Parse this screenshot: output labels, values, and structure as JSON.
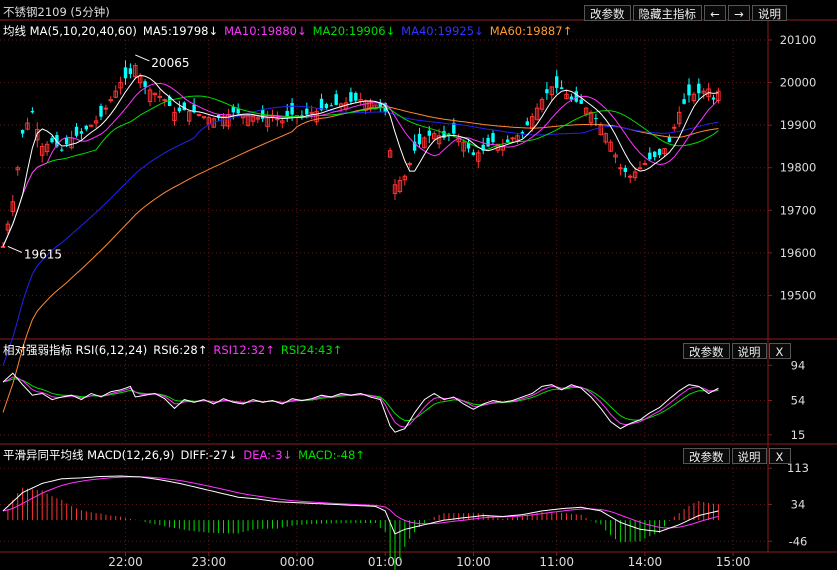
{
  "colors": {
    "up": "#ff3333",
    "down": "#00ffff",
    "bg": "#000000",
    "grid": "#5a1a1a",
    "axis": "#8b1c1c",
    "ma5": "#ffffff",
    "ma10": "#ff33ff",
    "ma20": "#00dd00",
    "ma40": "#2222ee",
    "ma60": "#ff8833",
    "rsi6": "#ffffff",
    "rsi12": "#ff33ff",
    "rsi24": "#00dd00",
    "diff": "#ffffff",
    "dea": "#ff33ff",
    "macd_pos": "#ff3333",
    "macd_neg": "#00dd00"
  },
  "header": {
    "title": "不锈钢2109 (5分钟)",
    "buttons": {
      "params": "改参数",
      "hide": "隐藏主指标",
      "prev": "←",
      "next": "→",
      "help": "说明",
      "close": "X"
    }
  },
  "ma_legend": {
    "name": "均线 MA(5,10,20,40,60)",
    "ma5": "MA5:19798↓",
    "ma10": "MA10:19880↓",
    "ma20": "MA20:19906↓",
    "ma40": "MA40:19925↓",
    "ma60": "MA60:19887↑"
  },
  "rsi_legend": {
    "name": "相对强弱指标 RSI(6,12,24)",
    "rsi6": "RSI6:28↑",
    "rsi12": "RSI12:32↑",
    "rsi24": "RSI24:43↑"
  },
  "macd_legend": {
    "name": "平滑异同平均线 MACD(12,26,9)",
    "diff": "DIFF:-27↓",
    "dea": "DEA:-3↓",
    "macd": "MACD:-48↑"
  },
  "chart_data": {
    "type": "candlestick",
    "price_axis": {
      "ticks": [
        19500,
        19600,
        19700,
        19800,
        19900,
        20000,
        20100
      ],
      "range": [
        19400,
        20100
      ]
    },
    "rsi_axis": {
      "ticks": [
        15,
        54,
        94
      ],
      "range": [
        8,
        100
      ]
    },
    "macd_axis": {
      "ticks": [
        -46,
        34,
        113
      ],
      "range": [
        -65,
        120
      ]
    },
    "time_ticks": [
      {
        "label": "22:00",
        "index": 25
      },
      {
        "label": "23:00",
        "index": 42
      },
      {
        "label": "00:00",
        "index": 60
      },
      {
        "label": "01:00",
        "index": 78
      },
      {
        "label": "10:00",
        "index": 96
      },
      {
        "label": "11:00",
        "index": 113
      },
      {
        "label": "14:00",
        "index": 131
      },
      {
        "label": "15:00",
        "index": 149
      }
    ],
    "annotations": [
      {
        "text": "20065",
        "index": 27,
        "value": 20065
      },
      {
        "text": "19615",
        "index": 1,
        "value": 19615
      }
    ],
    "waypoints": [
      [
        0,
        19615
      ],
      [
        2,
        19720
      ],
      [
        4,
        19880
      ],
      [
        6,
        19930
      ],
      [
        8,
        19850
      ],
      [
        10,
        19860
      ],
      [
        12,
        19840
      ],
      [
        14,
        19870
      ],
      [
        16,
        19880
      ],
      [
        18,
        19900
      ],
      [
        20,
        19920
      ],
      [
        22,
        19960
      ],
      [
        24,
        20000
      ],
      [
        26,
        20020
      ],
      [
        27,
        20040
      ],
      [
        29,
        19990
      ],
      [
        31,
        19975
      ],
      [
        33,
        19960
      ],
      [
        35,
        19930
      ],
      [
        37,
        19935
      ],
      [
        39,
        19930
      ],
      [
        41,
        19920
      ],
      [
        43,
        19915
      ],
      [
        45,
        19920
      ],
      [
        47,
        19930
      ],
      [
        49,
        19925
      ],
      [
        51,
        19920
      ],
      [
        53,
        19915
      ],
      [
        55,
        19920
      ],
      [
        57,
        19910
      ],
      [
        59,
        19925
      ],
      [
        61,
        19920
      ],
      [
        63,
        19930
      ],
      [
        65,
        19935
      ],
      [
        67,
        19945
      ],
      [
        69,
        19950
      ],
      [
        71,
        19955
      ],
      [
        73,
        19960
      ],
      [
        75,
        19955
      ],
      [
        77,
        19940
      ],
      [
        78,
        19930
      ],
      [
        79,
        19840
      ],
      [
        80,
        19760
      ],
      [
        82,
        19780
      ],
      [
        84,
        19840
      ],
      [
        86,
        19870
      ],
      [
        88,
        19880
      ],
      [
        90,
        19870
      ],
      [
        92,
        19880
      ],
      [
        94,
        19860
      ],
      [
        96,
        19830
      ],
      [
        98,
        19840
      ],
      [
        100,
        19860
      ],
      [
        102,
        19850
      ],
      [
        104,
        19870
      ],
      [
        106,
        19880
      ],
      [
        108,
        19920
      ],
      [
        110,
        19960
      ],
      [
        112,
        19990
      ],
      [
        114,
        19985
      ],
      [
        116,
        19960
      ],
      [
        118,
        19950
      ],
      [
        120,
        19930
      ],
      [
        122,
        19900
      ],
      [
        124,
        19860
      ],
      [
        126,
        19800
      ],
      [
        128,
        19780
      ],
      [
        130,
        19800
      ],
      [
        132,
        19820
      ],
      [
        134,
        19830
      ],
      [
        136,
        19860
      ],
      [
        138,
        19930
      ],
      [
        140,
        19970
      ],
      [
        142,
        19975
      ],
      [
        144,
        19985
      ],
      [
        145,
        19960
      ],
      [
        146,
        19980
      ]
    ],
    "rsi_waypoints": [
      [
        0,
        75
      ],
      [
        2,
        85
      ],
      [
        4,
        72
      ],
      [
        6,
        60
      ],
      [
        8,
        62
      ],
      [
        10,
        55
      ],
      [
        12,
        58
      ],
      [
        14,
        60
      ],
      [
        16,
        55
      ],
      [
        18,
        62
      ],
      [
        20,
        58
      ],
      [
        22,
        64
      ],
      [
        24,
        66
      ],
      [
        26,
        70
      ],
      [
        27,
        58
      ],
      [
        29,
        60
      ],
      [
        31,
        62
      ],
      [
        33,
        56
      ],
      [
        35,
        45
      ],
      [
        37,
        55
      ],
      [
        39,
        52
      ],
      [
        41,
        55
      ],
      [
        43,
        50
      ],
      [
        45,
        56
      ],
      [
        47,
        52
      ],
      [
        49,
        50
      ],
      [
        51,
        55
      ],
      [
        53,
        52
      ],
      [
        55,
        54
      ],
      [
        57,
        50
      ],
      [
        59,
        56
      ],
      [
        61,
        54
      ],
      [
        63,
        56
      ],
      [
        65,
        60
      ],
      [
        67,
        58
      ],
      [
        69,
        62
      ],
      [
        71,
        60
      ],
      [
        73,
        62
      ],
      [
        75,
        58
      ],
      [
        77,
        55
      ],
      [
        78,
        40
      ],
      [
        79,
        25
      ],
      [
        80,
        18
      ],
      [
        82,
        22
      ],
      [
        84,
        40
      ],
      [
        86,
        55
      ],
      [
        88,
        62
      ],
      [
        90,
        55
      ],
      [
        92,
        58
      ],
      [
        94,
        50
      ],
      [
        96,
        44
      ],
      [
        98,
        50
      ],
      [
        100,
        54
      ],
      [
        102,
        52
      ],
      [
        104,
        54
      ],
      [
        106,
        58
      ],
      [
        108,
        62
      ],
      [
        110,
        70
      ],
      [
        112,
        72
      ],
      [
        114,
        66
      ],
      [
        116,
        72
      ],
      [
        118,
        68
      ],
      [
        120,
        58
      ],
      [
        122,
        45
      ],
      [
        124,
        30
      ],
      [
        126,
        22
      ],
      [
        128,
        28
      ],
      [
        130,
        32
      ],
      [
        132,
        40
      ],
      [
        134,
        46
      ],
      [
        136,
        56
      ],
      [
        138,
        65
      ],
      [
        140,
        72
      ],
      [
        142,
        70
      ],
      [
        144,
        62
      ],
      [
        146,
        68
      ]
    ],
    "rsi_smoothing": {
      "rsi12": 0.55,
      "rsi24": 0.75
    },
    "macd_waypoints": [
      [
        0,
        20
      ],
      [
        4,
        60
      ],
      [
        8,
        80
      ],
      [
        12,
        90
      ],
      [
        16,
        92
      ],
      [
        20,
        95
      ],
      [
        24,
        96
      ],
      [
        28,
        94
      ],
      [
        32,
        88
      ],
      [
        36,
        80
      ],
      [
        40,
        70
      ],
      [
        44,
        60
      ],
      [
        48,
        50
      ],
      [
        52,
        46
      ],
      [
        56,
        40
      ],
      [
        60,
        38
      ],
      [
        64,
        36
      ],
      [
        68,
        34
      ],
      [
        72,
        32
      ],
      [
        76,
        30
      ],
      [
        78,
        20
      ],
      [
        80,
        -30
      ],
      [
        82,
        -20
      ],
      [
        86,
        -10
      ],
      [
        90,
        0
      ],
      [
        94,
        5
      ],
      [
        98,
        10
      ],
      [
        102,
        8
      ],
      [
        106,
        12
      ],
      [
        110,
        20
      ],
      [
        114,
        25
      ],
      [
        118,
        28
      ],
      [
        122,
        20
      ],
      [
        126,
        -5
      ],
      [
        130,
        -20
      ],
      [
        134,
        -25
      ],
      [
        138,
        -10
      ],
      [
        142,
        10
      ],
      [
        146,
        20
      ]
    ]
  }
}
